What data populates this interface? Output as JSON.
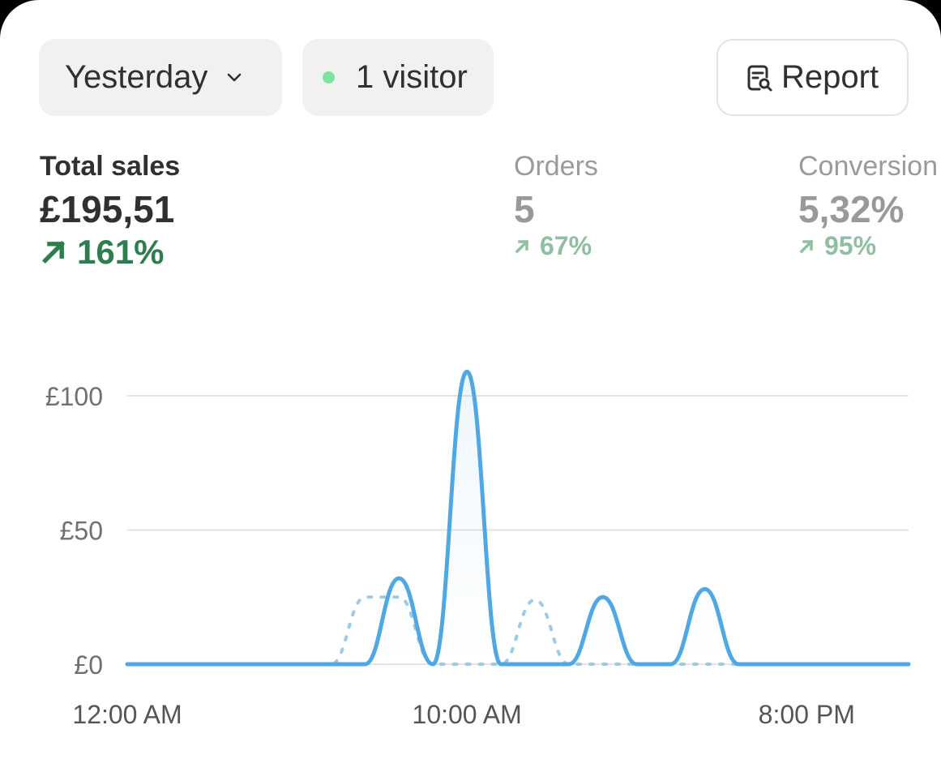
{
  "filters": {
    "date_label": "Yesterday",
    "visitors_label": "1 visitor",
    "visitor_dot_color": "#7ee2a0",
    "report_label": "Report"
  },
  "metrics": [
    {
      "label": "Total sales",
      "value": "£195,51",
      "delta": "161%"
    },
    {
      "label": "Orders",
      "value": "5",
      "delta": "67%"
    },
    {
      "label": "Conversion",
      "value": "5,32%",
      "delta": "95%"
    }
  ],
  "colors": {
    "accent_green": "#2e7d4e",
    "series_blue": "#4fa8e3",
    "compare_blue": "#9ccbe6"
  },
  "chart_data": {
    "type": "line",
    "y_ticks": [
      "£100",
      "£50",
      "£0"
    ],
    "y_tick_values": [
      100,
      50,
      0
    ],
    "ylim": [
      0,
      110
    ],
    "x_tick_labels": [
      "12:00 AM",
      "10:00 AM",
      "8:00 PM"
    ],
    "x_tick_hours": [
      0,
      10,
      20
    ],
    "xlim": [
      0,
      23
    ],
    "grid": true,
    "series": [
      {
        "values": [
          0,
          0,
          0,
          0,
          0,
          0,
          0,
          0,
          32,
          0,
          109,
          0,
          0,
          0,
          25,
          0,
          0,
          28,
          0,
          0,
          0,
          0,
          0,
          0
        ]
      },
      {
        "values": [
          0,
          0,
          0,
          0,
          0,
          0,
          0,
          25,
          25,
          0,
          0,
          0,
          24,
          0,
          0,
          0,
          0,
          0,
          0,
          0,
          0,
          0,
          0,
          0
        ]
      }
    ]
  }
}
